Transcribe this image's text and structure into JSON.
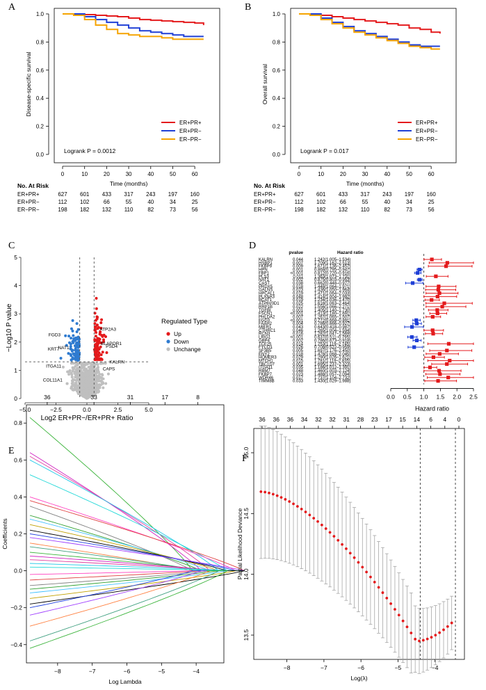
{
  "colors": {
    "red": "#e41a1c",
    "blue": "#1f3fd6",
    "orange": "#f5a300",
    "up": "#e41a1c",
    "down": "#2f7bd0",
    "unchange": "#bfbfbf",
    "green": "#3cb43c",
    "magenta": "#d020c0",
    "cyan": "#20c8e8",
    "lasso_dot": "#e41a1c",
    "err": "#9a9a9a"
  },
  "chart_data": [
    {
      "panel": "A",
      "type": "line",
      "ylabel": "Disease-specific survival",
      "xlabel": "Time (months)",
      "xlim": [
        0,
        65
      ],
      "ylim": [
        0,
        1
      ],
      "xticks": [
        "0",
        "10",
        "20",
        "30",
        "40",
        "50",
        "60"
      ],
      "yticks": [
        "0.0",
        "0.2",
        "0.4",
        "0.6",
        "0.8",
        "1.0"
      ],
      "legend": [
        "ER+PR+",
        "ER+PR−",
        "ER−PR−"
      ],
      "logrank": "Logrank P = 0.0012",
      "series": [
        {
          "name": "ER+PR+",
          "x": [
            0,
            5,
            10,
            15,
            20,
            25,
            30,
            35,
            40,
            45,
            50,
            55,
            60,
            64
          ],
          "y": [
            1,
            1,
            0.995,
            0.99,
            0.985,
            0.98,
            0.97,
            0.96,
            0.955,
            0.95,
            0.945,
            0.94,
            0.935,
            0.92
          ]
        },
        {
          "name": "ER+PR−",
          "x": [
            0,
            5,
            10,
            15,
            20,
            25,
            30,
            35,
            40,
            45,
            50,
            55,
            60,
            64
          ],
          "y": [
            1,
            1,
            0.98,
            0.96,
            0.94,
            0.92,
            0.9,
            0.88,
            0.87,
            0.86,
            0.85,
            0.84,
            0.84,
            0.84
          ]
        },
        {
          "name": "ER−PR−",
          "x": [
            0,
            5,
            10,
            15,
            20,
            25,
            30,
            35,
            40,
            45,
            50,
            55,
            60,
            64
          ],
          "y": [
            1,
            0.99,
            0.96,
            0.92,
            0.89,
            0.86,
            0.85,
            0.84,
            0.84,
            0.83,
            0.82,
            0.82,
            0.82,
            0.82
          ]
        }
      ],
      "risk_table": {
        "title": "No. At Risk",
        "rows": [
          {
            "label": "ER+PR+",
            "values": [
              "627",
              "601",
              "433",
              "317",
              "243",
              "197",
              "160"
            ]
          },
          {
            "label": "ER+PR−",
            "values": [
              "112",
              "102",
              "66",
              "55",
              "40",
              "34",
              "25"
            ]
          },
          {
            "label": "ER−PR−",
            "values": [
              "198",
              "182",
              "132",
              "110",
              "82",
              "73",
              "56"
            ]
          }
        ]
      }
    },
    {
      "panel": "B",
      "type": "line",
      "ylabel": "Overall survival",
      "xlabel": "Time (months)",
      "xlim": [
        0,
        65
      ],
      "ylim": [
        0,
        1
      ],
      "xticks": [
        "0",
        "10",
        "20",
        "30",
        "40",
        "50",
        "60"
      ],
      "yticks": [
        "0.0",
        "0.2",
        "0.4",
        "0.6",
        "0.8",
        "1.0"
      ],
      "legend": [
        "ER+PR+",
        "ER+PR−",
        "ER−PR−"
      ],
      "logrank": "Logrank P = 0.017",
      "series": [
        {
          "name": "ER+PR+",
          "x": [
            0,
            5,
            10,
            15,
            20,
            25,
            30,
            35,
            40,
            45,
            50,
            55,
            60,
            64
          ],
          "y": [
            1,
            1,
            0.99,
            0.98,
            0.97,
            0.96,
            0.95,
            0.94,
            0.93,
            0.92,
            0.9,
            0.89,
            0.87,
            0.86
          ]
        },
        {
          "name": "ER+PR−",
          "x": [
            0,
            5,
            10,
            15,
            20,
            25,
            30,
            35,
            40,
            45,
            50,
            55,
            60,
            64
          ],
          "y": [
            1,
            1,
            0.97,
            0.94,
            0.91,
            0.88,
            0.86,
            0.84,
            0.82,
            0.8,
            0.78,
            0.77,
            0.77,
            0.77
          ]
        },
        {
          "name": "ER−PR−",
          "x": [
            0,
            5,
            10,
            15,
            20,
            25,
            30,
            35,
            40,
            45,
            50,
            55,
            60,
            64
          ],
          "y": [
            1,
            0.99,
            0.96,
            0.93,
            0.9,
            0.87,
            0.85,
            0.83,
            0.81,
            0.79,
            0.77,
            0.76,
            0.75,
            0.75
          ]
        }
      ],
      "risk_table": {
        "title": "No. At Risk",
        "rows": [
          {
            "label": "ER+PR+",
            "values": [
              "627",
              "601",
              "433",
              "317",
              "243",
              "197",
              "160"
            ]
          },
          {
            "label": "ER+PR−",
            "values": [
              "112",
              "102",
              "66",
              "55",
              "40",
              "34",
              "25"
            ]
          },
          {
            "label": "ER−PR−",
            "values": [
              "198",
              "182",
              "132",
              "110",
              "82",
              "73",
              "56"
            ]
          }
        ]
      }
    },
    {
      "panel": "C",
      "type": "scatter",
      "xlabel": "Log2 ER+PR−/ER+PR+ Ratio",
      "ylabel": "−Log10 P value",
      "xlim": [
        -5,
        5
      ],
      "ylim": [
        0,
        5
      ],
      "xticks": [
        "−5.0",
        "−2.5",
        "0.0",
        "2.5",
        "5.0"
      ],
      "yticks": [
        "0",
        "1",
        "2",
        "3",
        "4",
        "5"
      ],
      "vlines": [
        -0.58,
        0.58
      ],
      "hline": 1.3,
      "legend_title": "Regulated Type",
      "legend": [
        "Up",
        "Down",
        "Unchange"
      ],
      "labels": [
        {
          "text": "ATP2A3",
          "x": 0.8,
          "y": 2.4
        },
        {
          "text": "BLAPOR1",
          "x": 0.9,
          "y": 1.9
        },
        {
          "text": "PSD4",
          "x": 1.3,
          "y": 1.8
        },
        {
          "text": "KALRN",
          "x": 1.6,
          "y": 1.25
        },
        {
          "text": "CAPS",
          "x": 1.05,
          "y": 1.0
        },
        {
          "text": "FGD3",
          "x": -1.9,
          "y": 2.2
        },
        {
          "text": "NAT1",
          "x": -1.2,
          "y": 1.75
        },
        {
          "text": "KRT7",
          "x": -2.0,
          "y": 1.7
        },
        {
          "text": "ITGA11",
          "x": -1.85,
          "y": 1.1
        },
        {
          "text": "COL11A1",
          "x": -1.75,
          "y": 0.6
        }
      ]
    },
    {
      "panel": "D",
      "type": "scatter",
      "subtype": "forest",
      "xlabel": "Hazard ratio",
      "xlim": [
        0,
        2.5
      ],
      "xticks": [
        "0.0",
        "0.5",
        "1.0",
        "1.5",
        "2.0",
        "2.5"
      ],
      "ref_line": 1.0,
      "col_headers": {
        "pvalue": "pvalue",
        "hr": "Hazard ratio"
      },
      "rows": [
        {
          "gene": "KALRN",
          "p": "0.044",
          "hrtxt": "1.242(1.005–1.534)",
          "hr": 1.242,
          "lo": 1.005,
          "hi": 1.534
        },
        {
          "gene": "HSBP1",
          "p": "0.007",
          "hrtxt": "1.709(1.162–2.513)",
          "hr": 1.709,
          "lo": 1.162,
          "hi": 2.513
        },
        {
          "gene": "FKBP9",
          "p": "0.009",
          "hrtxt": "1.671(1.136–2.457)",
          "hr": 1.671,
          "lo": 1.136,
          "hi": 2.457
        },
        {
          "gene": "HPN",
          "p": "0.001",
          "hrtxt": "0.868(0.795–0.947)",
          "hr": 0.868,
          "lo": 0.795,
          "hi": 0.947
        },
        {
          "gene": "FBP1",
          "p": "<0.001",
          "hrtxt": "0.812(0.720–0.916)",
          "hr": 0.812,
          "lo": 0.72,
          "hi": 0.916
        },
        {
          "gene": "PLS3",
          "p": "0.011",
          "hrtxt": "1.363(1.073–1.731)",
          "hr": 1.363,
          "lo": 1.073,
          "hi": 1.731
        },
        {
          "gene": "NAT1",
          "p": "0.002",
          "hrtxt": "0.875(0.803–0.953)",
          "hr": 0.875,
          "lo": 0.803,
          "hi": 0.953
        },
        {
          "gene": "CAST",
          "p": "0.038",
          "hrtxt": "0.662(0.448–0.977)",
          "hr": 0.662,
          "lo": 0.448,
          "hi": 0.977
        },
        {
          "gene": "PRDX5",
          "p": "0.018",
          "hrtxt": "1.448(1.064–1.971)",
          "hr": 1.448,
          "lo": 1.064,
          "hi": 1.971
        },
        {
          "gene": "GALNS",
          "p": "0.023",
          "hrtxt": "1.436(1.050–1.964)",
          "hr": 1.436,
          "lo": 1.05,
          "hi": 1.964
        },
        {
          "gene": "HPCAL1",
          "p": "0.019",
          "hrtxt": "1.471(1.064–2.033)",
          "hr": 1.471,
          "lo": 1.064,
          "hi": 2.033
        },
        {
          "gene": "PLXNA3",
          "p": "0.048",
          "hrtxt": "1.414(1.004–1.992)",
          "hr": 1.414,
          "lo": 1.004,
          "hi": 1.992
        },
        {
          "gene": "BCAT1",
          "p": "0.019",
          "hrtxt": "1.234(1.036–1.470)",
          "hr": 1.234,
          "lo": 1.036,
          "hi": 1.47
        },
        {
          "gene": "ATP6V0D1",
          "p": "0.025",
          "hrtxt": "1.618(1.063–2.464)",
          "hr": 1.618,
          "lo": 1.063,
          "hi": 2.464
        },
        {
          "gene": "RRP1B",
          "p": "0.022",
          "hrtxt": "1.556(1.066–2.271)",
          "hr": 1.556,
          "lo": 1.066,
          "hi": 2.271
        },
        {
          "gene": "TGFBI",
          "p": "0.001",
          "hrtxt": "1.405(1.140–1.730)",
          "hr": 1.405,
          "lo": 1.14,
          "hi": 1.73
        },
        {
          "gene": "FSCN1",
          "p": "<0.001",
          "hrtxt": "1.413(1.180–1.691)",
          "hr": 1.413,
          "lo": 1.18,
          "hi": 1.691
        },
        {
          "gene": "PHLDA2",
          "p": "0.007",
          "hrtxt": "1.267(1.065–1.507)",
          "hr": 1.267,
          "lo": 1.065,
          "hi": 1.507
        },
        {
          "gene": "FGD3",
          "p": "<0.001",
          "hrtxt": "0.772(0.668–0.891)",
          "hr": 0.772,
          "lo": 0.668,
          "hi": 0.891
        },
        {
          "gene": "FAAH2",
          "p": "0.004",
          "hrtxt": "0.786(0.666–0.927)",
          "hr": 0.786,
          "lo": 0.666,
          "hi": 0.927
        },
        {
          "gene": "MIER1",
          "p": "0.043",
          "hrtxt": "0.643(0.418–0.987)",
          "hr": 0.643,
          "lo": 0.418,
          "hi": 0.987
        },
        {
          "gene": "CTHRC1",
          "p": "0.046",
          "hrtxt": "1.265(1.004–1.594)",
          "hr": 1.265,
          "lo": 1.004,
          "hi": 1.594
        },
        {
          "gene": "RCN3",
          "p": "0.016",
          "hrtxt": "1.282(1.047–1.569)",
          "hr": 1.282,
          "lo": 1.047,
          "hi": 1.569
        },
        {
          "gene": "LRIG1",
          "p": "<0.001",
          "hrtxt": "0.637(0.511–0.795)",
          "hr": 0.637,
          "lo": 0.511,
          "hi": 0.795
        },
        {
          "gene": "GBP4",
          "p": "0.002",
          "hrtxt": "0.786(0.673–0.918)",
          "hr": 0.786,
          "lo": 0.673,
          "hi": 0.918
        },
        {
          "gene": "TCF25",
          "p": "0.014",
          "hrtxt": "1.753(1.119–2.745)",
          "hr": 1.753,
          "lo": 1.119,
          "hi": 2.745
        },
        {
          "gene": "FYCO1",
          "p": "0.026",
          "hrtxt": "0.708(0.522–0.959)",
          "hr": 0.708,
          "lo": 0.522,
          "hi": 0.959
        },
        {
          "gene": "SF3B5",
          "p": "0.005",
          "hrtxt": "1.697(1.176–2.450)",
          "hr": 1.697,
          "lo": 1.176,
          "hi": 2.45
        },
        {
          "gene": "ENY2",
          "p": "0.018",
          "hrtxt": "1.478(1.068–2.045)",
          "hr": 1.478,
          "lo": 1.068,
          "hi": 2.045
        },
        {
          "gene": "HOMER3",
          "p": "0.029",
          "hrtxt": "1.290(1.026–1.621)",
          "hr": 1.29,
          "lo": 1.026,
          "hi": 1.621
        },
        {
          "gene": "MTCH1",
          "p": "0.015",
          "hrtxt": "1.781(1.119–2.835)",
          "hr": 1.781,
          "lo": 1.119,
          "hi": 2.835
        },
        {
          "gene": "TBC1D7",
          "p": "0.001",
          "hrtxt": "1.695(1.237–2.323)",
          "hr": 1.695,
          "lo": 1.237,
          "hi": 2.323
        },
        {
          "gene": "ITGA11",
          "p": "0.035",
          "hrtxt": "1.186(1.012–1.391)",
          "hr": 1.186,
          "lo": 1.012,
          "hi": 1.391
        },
        {
          "gene": "RBM7",
          "p": "0.048",
          "hrtxt": "1.460(1.003–2.124)",
          "hr": 1.46,
          "lo": 1.003,
          "hi": 2.124
        },
        {
          "gene": "FKBP7",
          "p": "0.023",
          "hrtxt": "1.488(1.057–2.094)",
          "hr": 1.488,
          "lo": 1.057,
          "hi": 2.094
        },
        {
          "gene": "WDR46",
          "p": "0.017",
          "hrtxt": "1.737(1.104–2.732)",
          "hr": 1.737,
          "lo": 1.104,
          "hi": 2.732
        },
        {
          "gene": "TIMM8B",
          "p": "0.033",
          "hrtxt": "1.430(1.029–1.988)",
          "hr": 1.43,
          "lo": 1.029,
          "hi": 1.988
        }
      ]
    },
    {
      "panel": "E",
      "type": "line",
      "xlabel": "Log Lambda",
      "ylabel": "Coefficients",
      "xlim": [
        -8.8,
        -3.3
      ],
      "ylim": [
        -0.48,
        0.88
      ],
      "xticks": [
        "−8",
        "−7",
        "−6",
        "−5",
        "−4"
      ],
      "xtick_vals": [
        -8,
        -7,
        -6,
        -5,
        -4
      ],
      "yticks": [
        "−0.4",
        "−0.2",
        "0.0",
        "0.2",
        "0.4",
        "0.6",
        "0.8"
      ],
      "top_ticks": [
        "36",
        "33",
        "31",
        "17",
        "8"
      ],
      "top_tick_vals": [
        -8.3,
        -6.95,
        -5.9,
        -4.9,
        -3.95
      ]
    },
    {
      "panel": "F",
      "type": "scatter",
      "xlabel": "Log(λ)",
      "ylabel": "Partial Likelihood Deviance",
      "xlim": [
        -8.8,
        -3.3
      ],
      "ylim": [
        13.3,
        15.2
      ],
      "xticks": [
        "−8",
        "−7",
        "−6",
        "−5",
        "−4"
      ],
      "xtick_vals": [
        -8,
        -7,
        -6,
        -5,
        -4
      ],
      "yticks": [
        "13.5",
        "14.0",
        "14.5",
        "15.0"
      ],
      "ytick_vals": [
        13.5,
        14.0,
        14.5,
        15.0
      ],
      "top_ticks": [
        "36",
        "36",
        "36",
        "34",
        "32",
        "32",
        "31",
        "28",
        "23",
        "17",
        "15",
        "14",
        "6",
        "4",
        "0"
      ],
      "vlines": [
        -4.4,
        -3.45
      ],
      "min_point": {
        "x": -4.5,
        "y": 13.45
      }
    }
  ],
  "panel_letters": {
    "A": "A",
    "B": "B",
    "C": "C",
    "D": "D",
    "E": "E",
    "F": "F"
  }
}
